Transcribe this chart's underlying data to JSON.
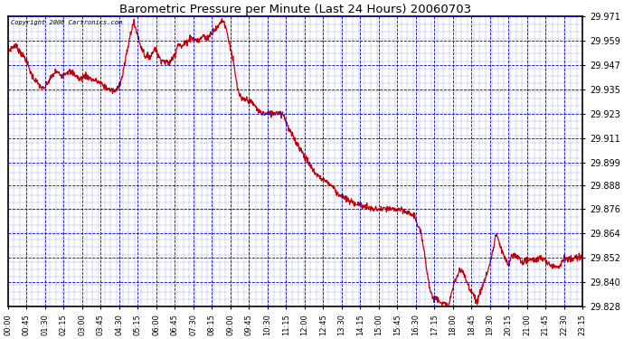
{
  "title": "Barometric Pressure per Minute (Last 24 Hours) 20060703",
  "copyright_text": "Copyright 2006 Cartronics.com",
  "line_color": "#cc0000",
  "background_color": "#ffffff",
  "plot_background": "#ffffff",
  "grid_color": "#0000cc",
  "axis_color": "#000000",
  "ylim": [
    29.828,
    29.971
  ],
  "yticks": [
    29.828,
    29.84,
    29.852,
    29.864,
    29.876,
    29.888,
    29.899,
    29.911,
    29.923,
    29.935,
    29.947,
    29.959,
    29.971
  ],
  "xtick_labels": [
    "00:00",
    "00:45",
    "01:30",
    "02:15",
    "03:00",
    "03:45",
    "04:30",
    "05:15",
    "06:00",
    "06:45",
    "07:30",
    "08:15",
    "09:00",
    "09:45",
    "10:30",
    "11:15",
    "12:00",
    "12:45",
    "13:30",
    "14:15",
    "15:00",
    "15:45",
    "16:30",
    "17:15",
    "18:00",
    "18:45",
    "19:30",
    "20:15",
    "21:00",
    "21:45",
    "22:30",
    "23:15"
  ],
  "key_points": [
    [
      0.0,
      29.954
    ],
    [
      0.3,
      29.957
    ],
    [
      0.75,
      29.95
    ],
    [
      1.0,
      29.942
    ],
    [
      1.25,
      29.938
    ],
    [
      1.5,
      29.935
    ],
    [
      1.75,
      29.94
    ],
    [
      2.0,
      29.944
    ],
    [
      2.25,
      29.942
    ],
    [
      2.5,
      29.944
    ],
    [
      2.75,
      29.943
    ],
    [
      3.0,
      29.94
    ],
    [
      3.25,
      29.942
    ],
    [
      3.5,
      29.94
    ],
    [
      3.75,
      29.939
    ],
    [
      4.0,
      29.937
    ],
    [
      4.25,
      29.935
    ],
    [
      4.5,
      29.934
    ],
    [
      4.75,
      29.94
    ],
    [
      5.0,
      29.955
    ],
    [
      5.15,
      29.964
    ],
    [
      5.25,
      29.968
    ],
    [
      5.4,
      29.963
    ],
    [
      5.5,
      29.958
    ],
    [
      5.65,
      29.954
    ],
    [
      5.75,
      29.951
    ],
    [
      6.0,
      29.952
    ],
    [
      6.15,
      29.956
    ],
    [
      6.3,
      29.951
    ],
    [
      6.5,
      29.949
    ],
    [
      6.75,
      29.948
    ],
    [
      7.0,
      29.953
    ],
    [
      7.1,
      29.958
    ],
    [
      7.25,
      29.956
    ],
    [
      7.5,
      29.959
    ],
    [
      7.65,
      29.961
    ],
    [
      7.75,
      29.96
    ],
    [
      8.0,
      29.959
    ],
    [
      8.15,
      29.962
    ],
    [
      8.3,
      29.96
    ],
    [
      8.5,
      29.963
    ],
    [
      8.65,
      29.965
    ],
    [
      8.75,
      29.965
    ],
    [
      8.9,
      29.969
    ],
    [
      9.0,
      29.969
    ],
    [
      9.1,
      29.966
    ],
    [
      9.25,
      29.958
    ],
    [
      9.4,
      29.95
    ],
    [
      9.5,
      29.942
    ],
    [
      9.6,
      29.935
    ],
    [
      9.75,
      29.93
    ],
    [
      10.0,
      29.93
    ],
    [
      10.25,
      29.928
    ],
    [
      10.5,
      29.924
    ],
    [
      10.75,
      29.923
    ],
    [
      11.0,
      29.923
    ],
    [
      11.25,
      29.924
    ],
    [
      11.5,
      29.923
    ],
    [
      11.6,
      29.92
    ],
    [
      11.75,
      29.915
    ],
    [
      12.0,
      29.91
    ],
    [
      12.25,
      29.905
    ],
    [
      12.5,
      29.9
    ],
    [
      12.75,
      29.895
    ],
    [
      13.0,
      29.892
    ],
    [
      13.25,
      29.89
    ],
    [
      13.4,
      29.889
    ],
    [
      13.5,
      29.888
    ],
    [
      13.65,
      29.886
    ],
    [
      13.75,
      29.884
    ],
    [
      14.0,
      29.882
    ],
    [
      14.25,
      29.88
    ],
    [
      14.5,
      29.879
    ],
    [
      14.75,
      29.878
    ],
    [
      15.0,
      29.877
    ],
    [
      15.25,
      29.876
    ],
    [
      15.5,
      29.876
    ],
    [
      15.75,
      29.876
    ],
    [
      16.0,
      29.876
    ],
    [
      16.25,
      29.876
    ],
    [
      16.5,
      29.875
    ],
    [
      16.75,
      29.874
    ],
    [
      17.0,
      29.873
    ],
    [
      17.1,
      29.868
    ],
    [
      17.25,
      29.864
    ],
    [
      17.4,
      29.855
    ],
    [
      17.5,
      29.846
    ],
    [
      17.6,
      29.838
    ],
    [
      17.75,
      29.832
    ],
    [
      18.0,
      29.832
    ],
    [
      18.1,
      29.83
    ],
    [
      18.25,
      29.829
    ],
    [
      18.4,
      29.828
    ],
    [
      18.5,
      29.833
    ],
    [
      18.65,
      29.84
    ],
    [
      18.75,
      29.843
    ],
    [
      18.9,
      29.846
    ],
    [
      19.0,
      29.845
    ],
    [
      19.1,
      29.842
    ],
    [
      19.25,
      29.838
    ],
    [
      19.4,
      29.835
    ],
    [
      19.5,
      29.833
    ],
    [
      19.6,
      29.83
    ],
    [
      19.75,
      29.836
    ],
    [
      19.9,
      29.841
    ],
    [
      20.0,
      29.844
    ],
    [
      20.1,
      29.848
    ],
    [
      20.25,
      29.855
    ],
    [
      20.35,
      29.862
    ],
    [
      20.4,
      29.864
    ],
    [
      20.5,
      29.86
    ],
    [
      20.6,
      29.856
    ],
    [
      20.75,
      29.852
    ],
    [
      20.9,
      29.848
    ],
    [
      21.0,
      29.852
    ],
    [
      21.15,
      29.854
    ],
    [
      21.25,
      29.853
    ],
    [
      21.4,
      29.851
    ],
    [
      21.5,
      29.85
    ],
    [
      21.75,
      29.851
    ],
    [
      22.0,
      29.851
    ],
    [
      22.25,
      29.852
    ],
    [
      22.5,
      29.85
    ],
    [
      22.75,
      29.848
    ],
    [
      23.0,
      29.848
    ],
    [
      23.25,
      29.852
    ],
    [
      23.5,
      29.851
    ],
    [
      23.75,
      29.852
    ],
    [
      24.0,
      29.852
    ]
  ]
}
